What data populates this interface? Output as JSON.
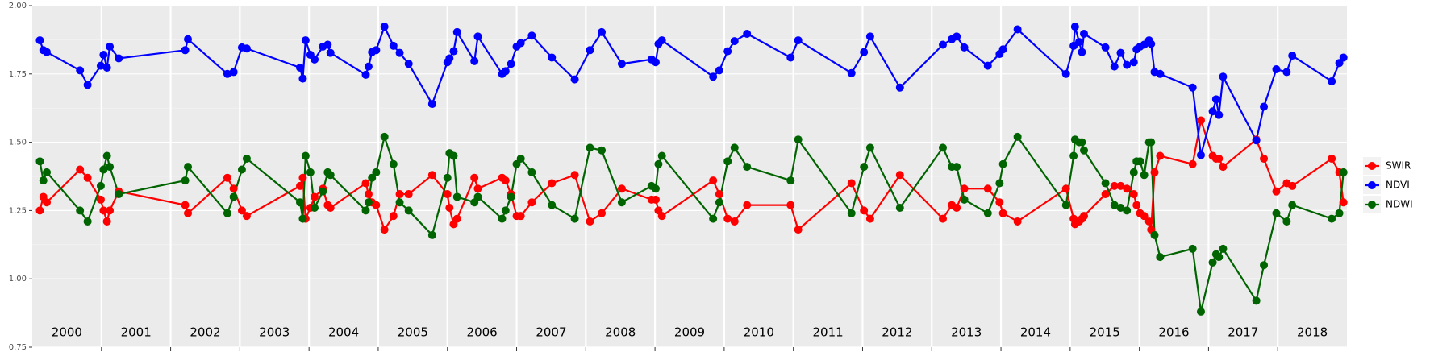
{
  "chart_data": {
    "type": "line",
    "categories": [
      "2000",
      "2001",
      "2002",
      "2003",
      "2004",
      "2005",
      "2006",
      "2007",
      "2008",
      "2009",
      "2010",
      "2011",
      "2012",
      "2013",
      "2014",
      "2015",
      "2016",
      "2017",
      "2018"
    ],
    "x": [
      2000.11,
      2000.16,
      2000.21,
      2000.69,
      2000.8,
      2000.99,
      2001.03,
      2001.08,
      2001.12,
      2001.25,
      2002.21,
      2002.25,
      2002.82,
      2002.91,
      2003.03,
      2003.1,
      2003.87,
      2003.91,
      2003.95,
      2004.02,
      2004.08,
      2004.2,
      2004.27,
      2004.31,
      2004.82,
      2004.86,
      2004.91,
      2004.97,
      2005.09,
      2005.22,
      2005.31,
      2005.44,
      2005.78,
      2006.0,
      2006.03,
      2006.09,
      2006.14,
      2006.39,
      2006.44,
      2006.79,
      2006.84,
      2006.92,
      2007.0,
      2007.06,
      2007.22,
      2007.51,
      2007.84,
      2008.06,
      2008.23,
      2008.52,
      2008.95,
      2009.01,
      2009.05,
      2009.1,
      2009.84,
      2009.93,
      2010.05,
      2010.15,
      2010.33,
      2010.96,
      2011.07,
      2011.84,
      2012.02,
      2012.11,
      2012.54,
      2013.16,
      2013.29,
      2013.36,
      2013.47,
      2013.81,
      2013.98,
      2014.03,
      2014.24,
      2014.94,
      2015.05,
      2015.07,
      2015.13,
      2015.17,
      2015.2,
      2015.51,
      2015.64,
      2015.73,
      2015.82,
      2015.92,
      2015.96,
      2016.01,
      2016.07,
      2016.14,
      2016.17,
      2016.22,
      2016.3,
      2016.77,
      2016.89,
      2017.06,
      2017.11,
      2017.15,
      2017.21,
      2017.69,
      2017.8,
      2017.98,
      2018.13,
      2018.21,
      2018.78,
      2018.89,
      2018.95
    ],
    "series": [
      {
        "name": "SWIR",
        "color": "#ff0000",
        "values": [
          1.25,
          1.3,
          1.28,
          1.4,
          1.37,
          1.29,
          1.25,
          1.21,
          1.25,
          1.32,
          1.27,
          1.24,
          1.37,
          1.33,
          1.25,
          1.23,
          1.34,
          1.37,
          1.22,
          1.26,
          1.3,
          1.33,
          1.27,
          1.26,
          1.35,
          1.31,
          1.28,
          1.27,
          1.18,
          1.23,
          1.31,
          1.31,
          1.38,
          1.31,
          1.26,
          1.2,
          1.22,
          1.37,
          1.33,
          1.37,
          1.36,
          1.31,
          1.23,
          1.23,
          1.28,
          1.35,
          1.38,
          1.21,
          1.24,
          1.33,
          1.29,
          1.29,
          1.25,
          1.23,
          1.36,
          1.31,
          1.22,
          1.21,
          1.27,
          1.27,
          1.18,
          1.35,
          1.25,
          1.22,
          1.38,
          1.22,
          1.27,
          1.26,
          1.33,
          1.33,
          1.28,
          1.24,
          1.21,
          1.33,
          1.22,
          1.2,
          1.21,
          1.22,
          1.23,
          1.31,
          1.34,
          1.34,
          1.33,
          1.31,
          1.27,
          1.24,
          1.23,
          1.21,
          1.18,
          1.39,
          1.45,
          1.42,
          1.58,
          1.45,
          1.44,
          1.44,
          1.41,
          1.51,
          1.44,
          1.32,
          1.35,
          1.34,
          1.44,
          1.39,
          1.28
        ]
      },
      {
        "name": "NDVI",
        "color": "#0000ff",
        "values": [
          1.873,
          1.837,
          1.83,
          1.763,
          1.71,
          1.78,
          1.82,
          1.773,
          1.85,
          1.807,
          1.837,
          1.877,
          1.75,
          1.757,
          1.847,
          1.843,
          1.773,
          1.733,
          1.873,
          1.82,
          1.803,
          1.85,
          1.857,
          1.827,
          1.747,
          1.777,
          1.83,
          1.837,
          1.923,
          1.853,
          1.827,
          1.787,
          1.64,
          1.793,
          1.807,
          1.833,
          1.903,
          1.797,
          1.887,
          1.75,
          1.76,
          1.787,
          1.85,
          1.863,
          1.89,
          1.81,
          1.73,
          1.837,
          1.903,
          1.787,
          1.803,
          1.793,
          1.86,
          1.873,
          1.74,
          1.763,
          1.833,
          1.87,
          1.897,
          1.81,
          1.873,
          1.753,
          1.83,
          1.887,
          1.7,
          1.857,
          1.877,
          1.887,
          1.847,
          1.78,
          1.823,
          1.84,
          1.913,
          1.75,
          1.853,
          1.923,
          1.867,
          1.83,
          1.897,
          1.847,
          1.777,
          1.827,
          1.783,
          1.793,
          1.84,
          1.85,
          1.857,
          1.873,
          1.86,
          1.757,
          1.75,
          1.7,
          1.453,
          1.613,
          1.657,
          1.6,
          1.74,
          1.507,
          1.63,
          1.767,
          1.757,
          1.817,
          1.723,
          1.79,
          1.81
        ]
      },
      {
        "name": "NDWI",
        "color": "#006400",
        "values": [
          1.43,
          1.36,
          1.39,
          1.25,
          1.21,
          1.34,
          1.4,
          1.45,
          1.41,
          1.31,
          1.36,
          1.41,
          1.24,
          1.3,
          1.4,
          1.44,
          1.28,
          1.22,
          1.45,
          1.39,
          1.26,
          1.32,
          1.39,
          1.38,
          1.25,
          1.28,
          1.37,
          1.39,
          1.52,
          1.42,
          1.28,
          1.25,
          1.16,
          1.37,
          1.46,
          1.45,
          1.3,
          1.28,
          1.3,
          1.22,
          1.25,
          1.3,
          1.42,
          1.44,
          1.39,
          1.27,
          1.22,
          1.48,
          1.47,
          1.28,
          1.34,
          1.33,
          1.42,
          1.45,
          1.22,
          1.28,
          1.43,
          1.48,
          1.41,
          1.36,
          1.51,
          1.24,
          1.41,
          1.48,
          1.26,
          1.48,
          1.41,
          1.41,
          1.29,
          1.24,
          1.35,
          1.42,
          1.52,
          1.27,
          1.45,
          1.51,
          1.5,
          1.5,
          1.47,
          1.35,
          1.27,
          1.26,
          1.25,
          1.39,
          1.43,
          1.43,
          1.38,
          1.5,
          1.5,
          1.16,
          1.08,
          1.11,
          0.88,
          1.06,
          1.09,
          1.08,
          1.11,
          0.92,
          1.05,
          1.24,
          1.21,
          1.27,
          1.22,
          1.24,
          1.39
        ]
      }
    ],
    "xlim": [
      2000,
      2019
    ],
    "xticks": [
      2001,
      2002,
      2003,
      2004,
      2005,
      2006,
      2007,
      2008,
      2009,
      2010,
      2011,
      2012,
      2013,
      2014,
      2015,
      2016,
      2017,
      2018
    ],
    "ylim": [
      0.75,
      2.0
    ],
    "yticks": [
      {
        "value": 0.75,
        "label": "0.75"
      },
      {
        "value": 1.0,
        "label": "1.00"
      },
      {
        "value": 1.25,
        "label": "1.25"
      },
      {
        "value": 1.5,
        "label": "1.50"
      },
      {
        "value": 1.75,
        "label": "1.75"
      },
      {
        "value": 2.0,
        "label": "2.00"
      }
    ],
    "grid": true,
    "legend": "right"
  }
}
